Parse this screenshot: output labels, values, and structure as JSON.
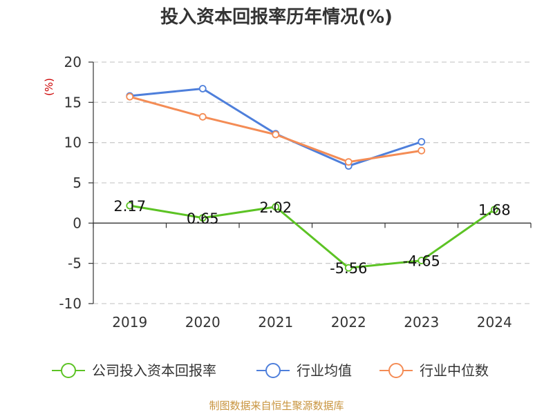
{
  "chart_data": {
    "type": "line",
    "title": "投入资本回报率历年情况(%)",
    "ylabel": "(%)",
    "categories": [
      "2019",
      "2020",
      "2021",
      "2022",
      "2023",
      "2024"
    ],
    "ylim": [
      -10,
      20
    ],
    "yticks": [
      20,
      15,
      10,
      5,
      0,
      -5,
      -10
    ],
    "grid": true,
    "legend_position": "bottom",
    "series": [
      {
        "name": "公司投入资本回报率",
        "color": "#5cc324",
        "values": [
          2.17,
          0.65,
          2.02,
          -5.56,
          -4.65,
          1.68
        ],
        "labels": [
          "2.17",
          "0.65",
          "2.02",
          "-5.56",
          "-4.65",
          "1.68"
        ]
      },
      {
        "name": "行业均值",
        "color": "#4e7fdb",
        "values": [
          15.8,
          16.7,
          11.1,
          7.1,
          10.1,
          null
        ]
      },
      {
        "name": "行业中位数",
        "color": "#f48c55",
        "values": [
          15.7,
          13.2,
          11.0,
          7.6,
          9.0,
          null
        ]
      }
    ]
  },
  "source_note": "制图数据来自恒生聚源数据库",
  "colors": {
    "ylabel": "#cc0000",
    "source": "#c8943f",
    "grid": "#cccccc",
    "axis": "#333333"
  }
}
